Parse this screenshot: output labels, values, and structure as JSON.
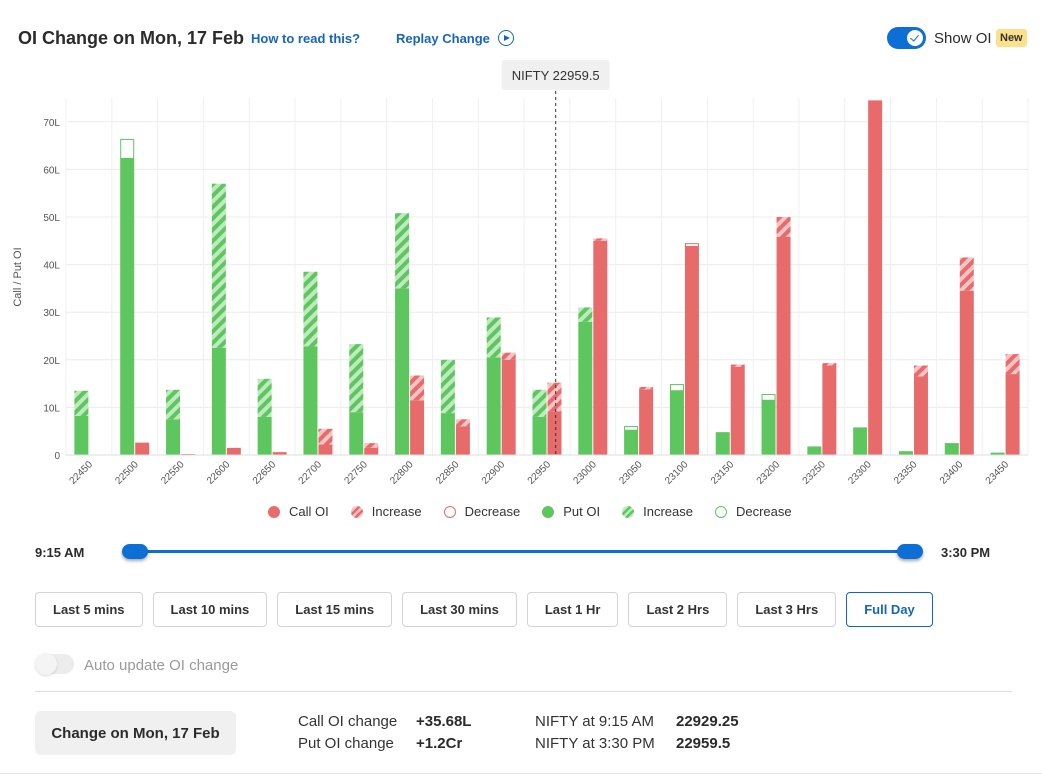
{
  "header": {
    "title": "OI Change on Mon, 17 Feb",
    "how_to_read": "How to read this?",
    "replay": "Replay Change",
    "show_oi_label": "Show OI",
    "show_oi_on": true,
    "new_badge": "New"
  },
  "chart_data": {
    "type": "bar",
    "ylabel": "Call / Put OI",
    "y_unit": "L",
    "ylim": [
      0,
      75
    ],
    "y_ticks": [
      "0",
      "10L",
      "20L",
      "30L",
      "40L",
      "50L",
      "60L",
      "70L"
    ],
    "y_tick_values": [
      0,
      10,
      20,
      30,
      40,
      50,
      60,
      70
    ],
    "grid": true,
    "spot_label": "NIFTY 22959.5",
    "spot_value": 22959.5,
    "categories": [
      "22450",
      "22500",
      "22550",
      "22600",
      "22650",
      "22700",
      "22750",
      "22800",
      "22850",
      "22900",
      "22950",
      "23000",
      "23050",
      "23100",
      "23150",
      "23200",
      "23250",
      "23300",
      "23350",
      "23400",
      "23450"
    ],
    "series": [
      {
        "name": "Put OI",
        "color": "#5ec65e",
        "base": [
          8.2,
          62.3,
          7.5,
          22.5,
          8.0,
          22.8,
          9.0,
          35.0,
          8.8,
          20.5,
          8.0,
          28.0,
          5.2,
          13.5,
          4.8,
          11.5,
          1.8,
          5.8,
          0.8,
          2.5,
          0.5
        ],
        "increase": [
          5.3,
          0,
          6.2,
          34.5,
          8.0,
          15.7,
          14.3,
          15.8,
          11.2,
          8.4,
          5.7,
          3.0,
          0,
          0,
          0,
          0,
          0,
          0,
          0,
          0,
          0
        ],
        "decrease": [
          0,
          4.0,
          0,
          0,
          0,
          0,
          0,
          0,
          0,
          0,
          0,
          0,
          0.8,
          1.3,
          0,
          1.2,
          0,
          0,
          0,
          0,
          0
        ]
      },
      {
        "name": "Call OI",
        "color": "#e86b6b",
        "base": [
          0.1,
          2.6,
          0.2,
          1.5,
          0.6,
          2.2,
          1.5,
          11.5,
          6.0,
          20.0,
          9.2,
          45.0,
          13.8,
          43.8,
          18.5,
          45.8,
          18.8,
          74.5,
          16.5,
          34.5,
          17.0
        ],
        "increase": [
          0,
          0,
          0,
          0,
          0,
          3.3,
          1.0,
          5.2,
          1.5,
          1.5,
          6.0,
          0.5,
          0.5,
          0,
          0.5,
          4.2,
          0.5,
          0,
          2.3,
          7.0,
          4.2
        ],
        "decrease": [
          0,
          0,
          0,
          0,
          0,
          0,
          0,
          0,
          0,
          0,
          0,
          0,
          0,
          0.6,
          0,
          0,
          0,
          0,
          0,
          0,
          0
        ]
      }
    ]
  },
  "legend": {
    "items": [
      {
        "key": "call",
        "label": "Call OI"
      },
      {
        "key": "call-inc",
        "label": "Increase"
      },
      {
        "key": "call-dec",
        "label": "Decrease"
      },
      {
        "key": "put",
        "label": "Put OI"
      },
      {
        "key": "put-inc",
        "label": "Increase"
      },
      {
        "key": "put-dec",
        "label": "Decrease"
      }
    ]
  },
  "slider": {
    "start_label": "9:15 AM",
    "end_label": "3:30 PM",
    "start_fraction": 0.0,
    "end_fraction": 1.0
  },
  "range_buttons": [
    {
      "label": "Last 5 mins",
      "active": false
    },
    {
      "label": "Last 10 mins",
      "active": false
    },
    {
      "label": "Last 15 mins",
      "active": false
    },
    {
      "label": "Last 30 mins",
      "active": false
    },
    {
      "label": "Last 1 Hr",
      "active": false
    },
    {
      "label": "Last 2 Hrs",
      "active": false
    },
    {
      "label": "Last 3 Hrs",
      "active": false
    },
    {
      "label": "Full Day",
      "active": true
    }
  ],
  "auto_update": {
    "label": "Auto update OI change",
    "enabled": false
  },
  "summary": {
    "change_button": "Change on Mon, 17 Feb",
    "call_label": "Call OI change",
    "call_value": "+35.68L",
    "put_label": "Put OI change",
    "put_value": "+1.2Cr",
    "nifty_start_label": "NIFTY at 9:15 AM",
    "nifty_start_value": "22929.25",
    "nifty_end_label": "NIFTY at 3:30 PM",
    "nifty_end_value": "22959.5"
  },
  "colors": {
    "accent": "#0d6fd6",
    "call": "#e86b6b",
    "put": "#5ec65e"
  }
}
